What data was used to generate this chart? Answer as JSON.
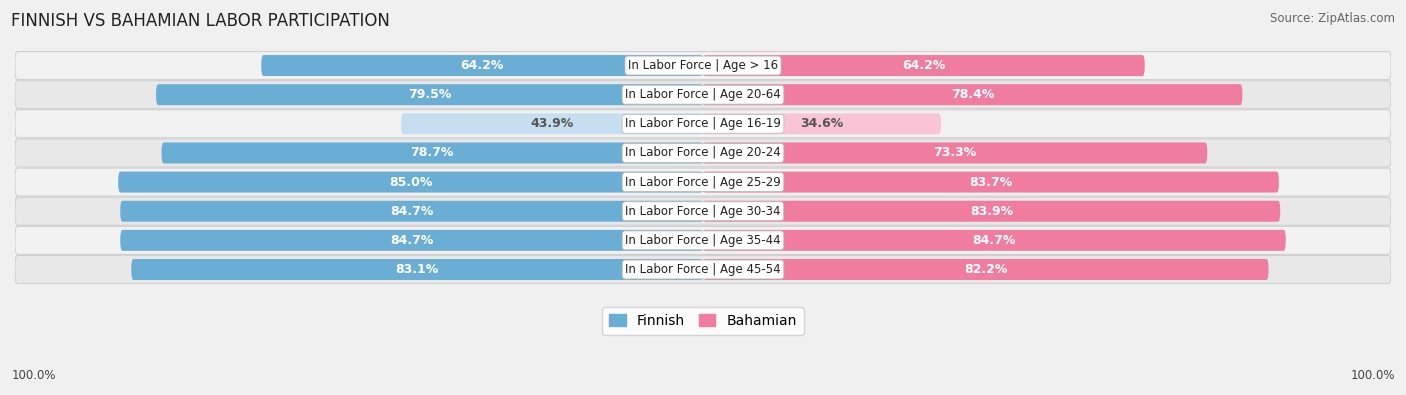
{
  "title": "FINNISH VS BAHAMIAN LABOR PARTICIPATION",
  "source": "Source: ZipAtlas.com",
  "categories": [
    "In Labor Force | Age > 16",
    "In Labor Force | Age 20-64",
    "In Labor Force | Age 16-19",
    "In Labor Force | Age 20-24",
    "In Labor Force | Age 25-29",
    "In Labor Force | Age 30-34",
    "In Labor Force | Age 35-44",
    "In Labor Force | Age 45-54"
  ],
  "finnish_values": [
    64.2,
    79.5,
    43.9,
    78.7,
    85.0,
    84.7,
    84.7,
    83.1
  ],
  "bahamian_values": [
    64.2,
    78.4,
    34.6,
    73.3,
    83.7,
    83.9,
    84.7,
    82.2
  ],
  "finnish_color": "#6aaed6",
  "finnish_color_light": "#c5dff0",
  "bahamian_color": "#f07ca0",
  "bahamian_color_light": "#f9c4d5",
  "row_bg_color_odd": "#f2f2f2",
  "row_bg_color_even": "#e8e8e8",
  "background_color": "#f0f0f0",
  "label_color_dark": "#555555",
  "label_color_white": "#ffffff",
  "x_max": 100.0,
  "legend_labels": [
    "Finnish",
    "Bahamian"
  ],
  "bottom_label": "100.0%",
  "bar_height": 0.72,
  "title_fontsize": 12,
  "source_fontsize": 8.5,
  "label_fontsize": 9,
  "category_fontsize": 8.5,
  "legend_fontsize": 10
}
